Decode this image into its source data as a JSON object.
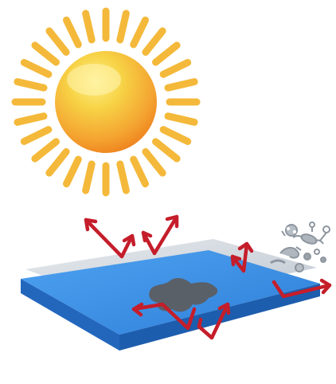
{
  "image": {
    "title": "",
    "icons": [
      "sun-icon",
      "glass-panel-icon",
      "dirt-stain-icon",
      "microbes-icon",
      "reflection-arrows-icon"
    ],
    "colors": {
      "sun_inner": "#F7D346",
      "sun_outer": "#F08A1F",
      "sun_rays": "#F4B93A",
      "panel_top": "#3A8FE6",
      "panel_side": "#1E63B8",
      "coating": "#CFD6DE",
      "arrows": "#C51D2A",
      "stain": "#5A6068",
      "microbes": "#8E969F"
    }
  }
}
